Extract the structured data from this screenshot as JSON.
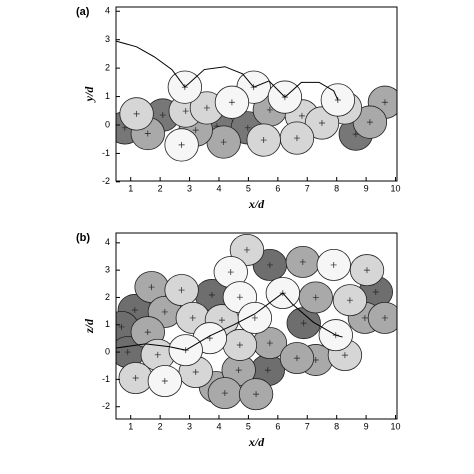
{
  "chart_data": [
    {
      "type": "scatter",
      "title": "(a)",
      "xlabel": "x/d",
      "ylabel": "y/d",
      "xlim": [
        0.5,
        10.05
      ],
      "ylim": [
        -1.97,
        4.15
      ],
      "xticks": [
        1,
        2,
        3,
        4,
        5,
        6,
        7,
        8,
        9,
        10
      ],
      "yticks": [
        -2,
        -1,
        0,
        1,
        2,
        3,
        4
      ],
      "series": [
        {
          "color": "#777777",
          "x": [
            2.09,
            0.8,
            3.93,
            4.98,
            8.65
          ],
          "y": [
            0.35,
            -0.1,
            -0.04,
            -0.1,
            -0.32
          ]
        },
        {
          "color": "#a9a9a9",
          "x": [
            9.64,
            1.58,
            5.73,
            9.13,
            4.16,
            3.21
          ],
          "y": [
            0.8,
            -0.3,
            0.53,
            0.1,
            -0.6,
            -0.18
          ]
        },
        {
          "color": "#d6d6d6",
          "x": [
            2.87,
            1.2,
            3.59,
            6.82,
            8.28,
            7.5,
            6.65,
            5.52
          ],
          "y": [
            0.49,
            0.39,
            0.6,
            0.32,
            0.6,
            0.07,
            -0.46,
            -0.53
          ]
        },
        {
          "color": "#f6f6f6",
          "x": [
            2.84,
            5.18,
            6.24,
            8.04,
            4.44,
            2.73
          ],
          "y": [
            1.33,
            1.33,
            0.98,
            0.88,
            0.8,
            -0.7
          ]
        }
      ],
      "lines": [
        {
          "color": "#000000",
          "x": [
            0.5,
            1.2,
            1.8,
            2.4,
            2.84,
            3.5,
            4.2,
            4.8,
            5.18,
            5.7,
            6.24,
            6.8,
            7.4,
            7.9,
            8.04
          ],
          "y": [
            2.95,
            2.75,
            2.4,
            1.95,
            1.33,
            1.95,
            2.05,
            1.8,
            1.33,
            1.55,
            0.98,
            1.5,
            1.5,
            1.2,
            0.88
          ]
        }
      ]
    },
    {
      "type": "scatter",
      "title": "(b)",
      "xlabel": "x/d",
      "ylabel": "z/d",
      "xlim": [
        0.5,
        10.05
      ],
      "ylim": [
        -2.45,
        4.36
      ],
      "xticks": [
        1,
        2,
        3,
        4,
        5,
        6,
        7,
        8,
        9,
        10
      ],
      "yticks": [
        -2,
        -1,
        0,
        1,
        2,
        3,
        4
      ],
      "series": [
        {
          "color": "#6e6e6e",
          "x": [
            5.73,
            3.76,
            9.33,
            1.14,
            6.88,
            0.69,
            0.9,
            5.66
          ],
          "y": [
            3.19,
            2.09,
            2.2,
            1.54,
            1.06,
            0.92,
            0.0,
            -0.66
          ]
        },
        {
          "color": "#a9a9a9",
          "x": [
            6.85,
            1.71,
            7.29,
            2.16,
            8.96,
            9.64,
            1.58,
            5.73,
            7.29,
            3.9,
            4.67,
            6.65,
            4.2,
            5.26
          ],
          "y": [
            3.3,
            2.38,
            2.0,
            1.47,
            1.25,
            1.25,
            0.73,
            0.33,
            -0.29,
            -1.28,
            -0.66,
            -0.22,
            -1.5,
            -1.54
          ]
        },
        {
          "color": "#d6d6d6",
          "x": [
            4.95,
            9.03,
            2.73,
            8.45,
            3.11,
            4.1,
            4.71,
            1.92,
            8.28,
            1.17,
            3.21
          ],
          "y": [
            3.74,
            3.0,
            2.27,
            1.9,
            1.25,
            1.17,
            0.26,
            -0.1,
            -0.11,
            -0.95,
            -0.73
          ]
        },
        {
          "color": "#f6f6f6",
          "x": [
            4.4,
            7.9,
            4.71,
            6.17,
            5.22,
            3.69,
            7.97,
            2.87,
            2.16
          ],
          "y": [
            2.93,
            3.19,
            2.01,
            2.16,
            1.25,
            0.51,
            0.62,
            0.07,
            -1.06
          ]
        }
      ],
      "lines": [
        {
          "color": "#000000",
          "x": [
            0.5,
            1.5,
            2.3,
            2.87,
            3.7,
            4.5,
            5.22,
            6.17,
            6.5,
            7.2,
            7.97,
            8.2
          ],
          "y": [
            0.15,
            0.3,
            0.2,
            0.07,
            0.6,
            1.0,
            1.4,
            2.16,
            1.75,
            1.1,
            0.62,
            0.55
          ]
        }
      ]
    }
  ]
}
